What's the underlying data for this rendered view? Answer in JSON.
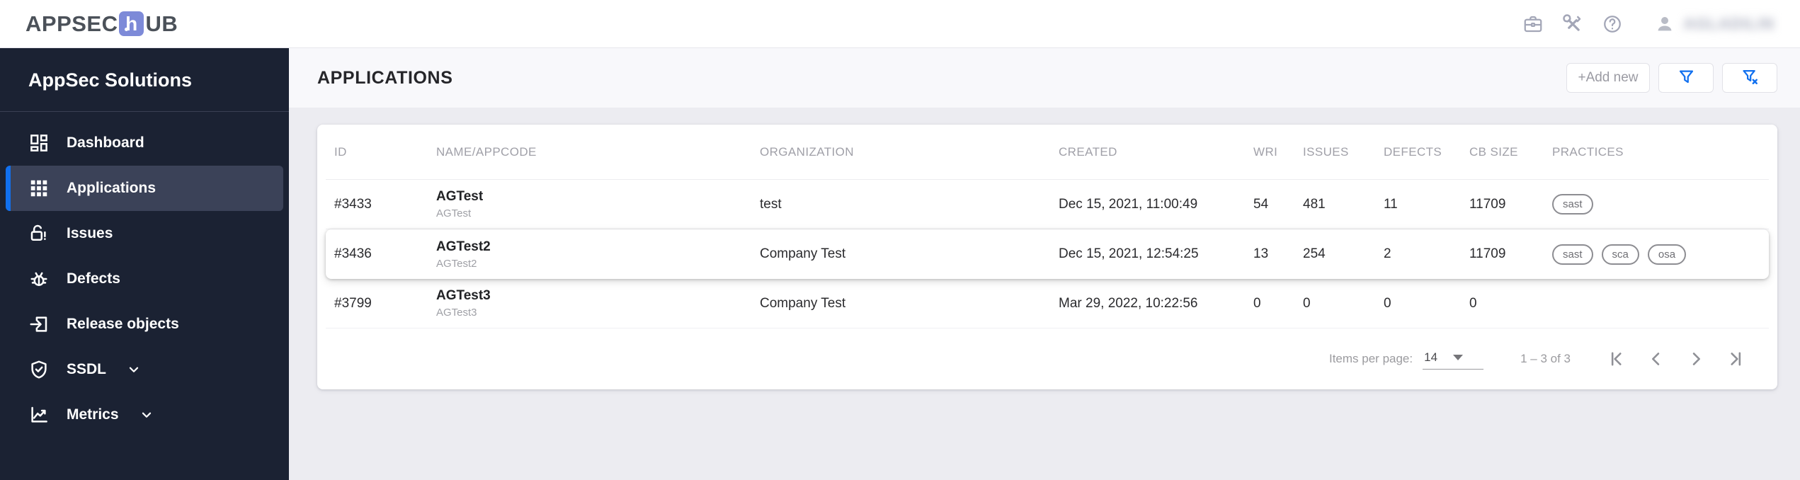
{
  "topbar": {
    "logo": {
      "prefix": "APPSEC",
      "middle": "h",
      "suffix": "UB"
    },
    "icons": [
      "briefcase-icon",
      "tools-icon",
      "help-icon"
    ],
    "user": {
      "name": "AGLADILIN",
      "icon": "person-icon"
    }
  },
  "sidebar": {
    "title": "AppSec Solutions",
    "items": [
      {
        "label": "Dashboard",
        "icon": "dashboard-icon",
        "active": false,
        "expandable": false
      },
      {
        "label": "Applications",
        "icon": "apps-grid-icon",
        "active": true,
        "expandable": false
      },
      {
        "label": "Issues",
        "icon": "lock-alert-icon",
        "active": false,
        "expandable": false
      },
      {
        "label": "Defects",
        "icon": "bug-icon",
        "active": false,
        "expandable": false
      },
      {
        "label": "Release objects",
        "icon": "release-objects-icon",
        "active": false,
        "expandable": false
      },
      {
        "label": "SSDL",
        "icon": "shield-check-icon",
        "active": false,
        "expandable": true
      },
      {
        "label": "Metrics",
        "icon": "metrics-chart-icon",
        "active": false,
        "expandable": true
      }
    ]
  },
  "page": {
    "title": "APPLICATIONS",
    "buttons": {
      "add_new": "+Add new",
      "filter_icon": "filter-icon",
      "filter_clear_icon": "filter-clear-icon"
    }
  },
  "table": {
    "columns": [
      "ID",
      "NAME/APPCODE",
      "ORGANIZATION",
      "CREATED",
      "WRI",
      "ISSUES",
      "DEFECTS",
      "CB SIZE",
      "PRACTICES"
    ],
    "rows": [
      {
        "id": "#3433",
        "name": "AGTest",
        "appcode": "AGTest",
        "organization": "test",
        "created": "Dec 15, 2021, 11:00:49",
        "wri": "54",
        "issues": "481",
        "defects": "11",
        "cb_size": "11709",
        "practices": [
          "sast"
        ],
        "elevated": false
      },
      {
        "id": "#3436",
        "name": "AGTest2",
        "appcode": "AGTest2",
        "organization": "Company Test",
        "created": "Dec 15, 2021, 12:54:25",
        "wri": "13",
        "issues": "254",
        "defects": "2",
        "cb_size": "11709",
        "practices": [
          "sast",
          "sca",
          "osa"
        ],
        "elevated": true
      },
      {
        "id": "#3799",
        "name": "AGTest3",
        "appcode": "AGTest3",
        "organization": "Company Test",
        "created": "Mar 29, 2022, 10:22:56",
        "wri": "0",
        "issues": "0",
        "defects": "0",
        "cb_size": "0",
        "practices": [],
        "elevated": false
      }
    ]
  },
  "pagination": {
    "items_per_page_label": "Items per page:",
    "items_per_page_value": "14",
    "range_label": "1 – 3 of 3",
    "nav_icons": [
      "first-page-icon",
      "prev-page-icon",
      "next-page-icon",
      "last-page-icon"
    ]
  },
  "colors": {
    "accent_blue": "#1170ef",
    "sidebar_bg": "#1b2233",
    "active_item_bg": "#3b4258",
    "logo_square": "#7d8ad8"
  }
}
